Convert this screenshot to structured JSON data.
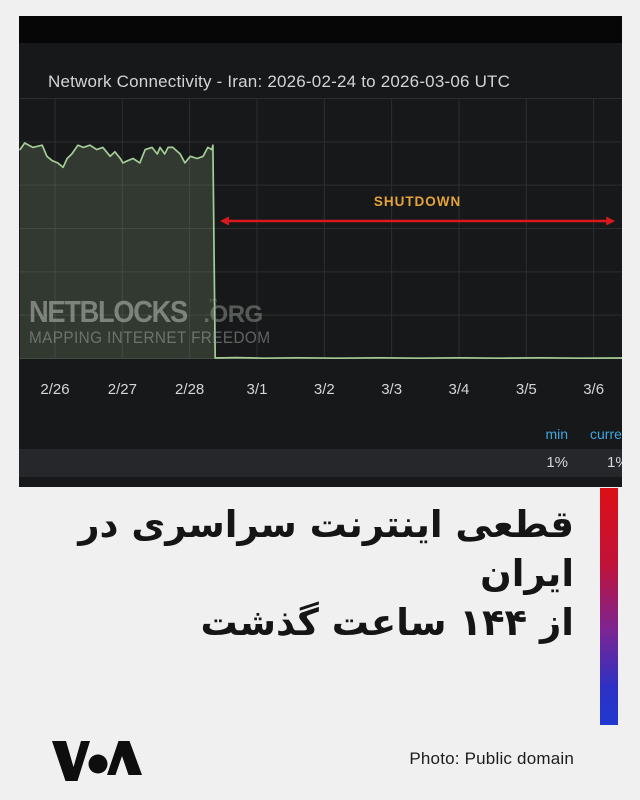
{
  "chart_panel": {
    "title": "Network Connectivity - Iran: 2026-02-24 to 2026-03-06 UTC",
    "watermark": {
      "brand": "NETBLOCKS",
      "suffix": ".ORG",
      "tm": "™",
      "tagline": "MAPPING INTERNET FREEDOM"
    },
    "stats": {
      "min_label": "min",
      "current_label": "current",
      "min_value": "1%",
      "current_value": "1%"
    },
    "colors": {
      "panel_bg": "#17181a",
      "top_bar": "#060607",
      "grid": "#2b2e2f",
      "line": "#a6cc96",
      "fill": "rgba(166,204,150,0.19)",
      "arrow_red": "#d9191c",
      "shutdown_orange": "#e5a33b",
      "stat_label_blue": "#3fa7dd",
      "axis_text": "#d4d5d5"
    }
  },
  "chart_data": {
    "type": "area",
    "title": "Network Connectivity - Iran: 2026-02-24 to 2026-03-06 UTC",
    "x_tick_labels": [
      "2/26",
      "2/27",
      "2/28",
      "3/1",
      "3/2",
      "3/3",
      "3/4",
      "3/5",
      "3/6"
    ],
    "x_unit": "day (0 = 2/26 tick, visible range -0.52 to 8.42)",
    "y_unit": "percent connectivity",
    "y_range": [
      0,
      110
    ],
    "grid": true,
    "annotation": {
      "label": "SHUTDOWN",
      "span_days": [
        2.45,
        8.32
      ]
    },
    "min_pct": 1,
    "current_pct": 1,
    "points": [
      [
        -0.52,
        95
      ],
      [
        -0.45,
        98
      ],
      [
        -0.33,
        96
      ],
      [
        -0.19,
        97
      ],
      [
        -0.12,
        92
      ],
      [
        -0.04,
        90
      ],
      [
        0.04,
        89
      ],
      [
        0.12,
        87
      ],
      [
        0.18,
        91
      ],
      [
        0.25,
        93
      ],
      [
        0.34,
        97
      ],
      [
        0.42,
        96
      ],
      [
        0.52,
        97
      ],
      [
        0.62,
        95
      ],
      [
        0.71,
        96
      ],
      [
        0.82,
        92
      ],
      [
        0.89,
        94
      ],
      [
        0.97,
        91
      ],
      [
        1.01,
        89
      ],
      [
        1.08,
        90
      ],
      [
        1.16,
        91
      ],
      [
        1.26,
        89
      ],
      [
        1.34,
        95
      ],
      [
        1.44,
        96
      ],
      [
        1.52,
        93
      ],
      [
        1.56,
        96
      ],
      [
        1.63,
        93
      ],
      [
        1.68,
        96
      ],
      [
        1.75,
        96
      ],
      [
        1.86,
        93
      ],
      [
        1.93,
        89
      ],
      [
        2.01,
        92
      ],
      [
        2.11,
        91
      ],
      [
        2.2,
        92
      ],
      [
        2.27,
        96
      ],
      [
        2.33,
        95
      ],
      [
        2.345,
        97
      ],
      [
        2.38,
        1
      ],
      [
        2.7,
        1.2
      ],
      [
        3.1,
        0.9
      ],
      [
        3.6,
        1.1
      ],
      [
        4.2,
        0.9
      ],
      [
        4.8,
        1.1
      ],
      [
        5.4,
        0.9
      ],
      [
        6.0,
        1.1
      ],
      [
        6.6,
        0.9
      ],
      [
        7.2,
        1.1
      ],
      [
        7.8,
        0.9
      ],
      [
        8.42,
        1
      ]
    ]
  },
  "headline": {
    "line1": "قطعی اینترنت سراسری در ایران",
    "line2": "از ۱۴۴ ساعت گذشت"
  },
  "footer": {
    "brand": "VOA",
    "credit": "Photo: Public domain"
  }
}
